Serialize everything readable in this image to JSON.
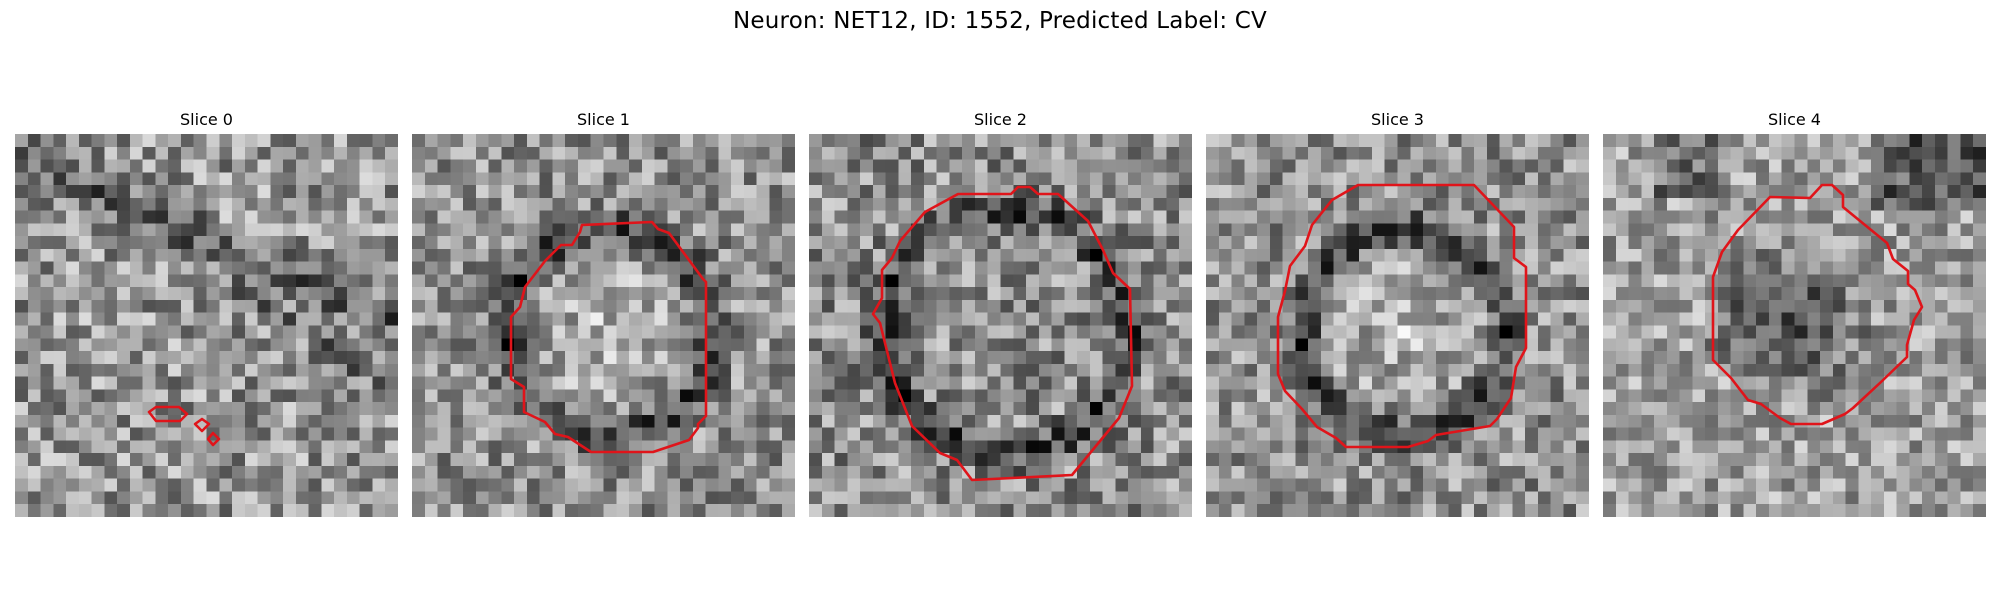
{
  "figure": {
    "title": "Neuron: NET12, ID: 1552, Predicted Label: CV",
    "contour_color": "#e0141a",
    "panels": [
      {
        "title": "Slice 0",
        "pattern": "field"
      },
      {
        "title": "Slice 1",
        "pattern": "bright-ring"
      },
      {
        "title": "Slice 2",
        "pattern": "mid-ring"
      },
      {
        "title": "Slice 3",
        "pattern": "bright-ring"
      },
      {
        "title": "Slice 4",
        "pattern": "dark-blob"
      }
    ]
  }
}
